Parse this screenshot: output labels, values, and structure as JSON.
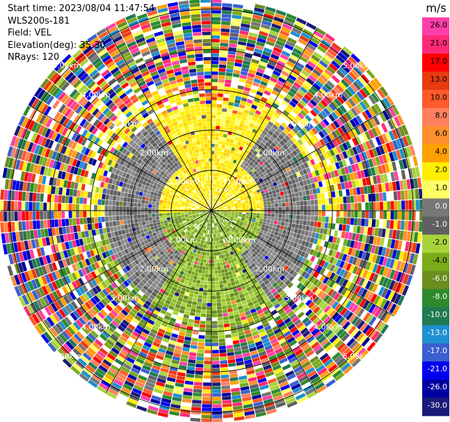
{
  "header": {
    "start_time": "Start time: 2023/08/04 11:47:54",
    "instrument": "WLS200s-181",
    "field": "Field: VEL",
    "elevation": "Elevation(deg): 35.30",
    "nrays": "NRays: 120"
  },
  "chart_data": {
    "type": "heatmap",
    "subtype": "polar-ppi",
    "field": "VEL",
    "units": "m/s",
    "n_rays": 120,
    "elevation_deg": 35.3,
    "range_rings_km": [
      1,
      2,
      3,
      4,
      5
    ],
    "range_ring_labels": [
      "1.00km",
      "2.00km",
      "3.00km",
      "4.00km",
      "5.00km"
    ],
    "colorbar": {
      "unit_label": "m/s",
      "tick_labels": [
        "26.0",
        "21.0",
        "17.0",
        "13.0",
        "10.0",
        "8.0",
        "6.0",
        "4.0",
        "2.0",
        "1.0",
        "0.0",
        "-1.0",
        "-2.0",
        "-4.0",
        "-6.0",
        "-8.0",
        "-10.0",
        "-13.0",
        "-17.0",
        "-21.0",
        "-26.0",
        "-30.0"
      ],
      "colors": [
        "#ff3fa8",
        "#ff2a77",
        "#ff0000",
        "#e83b10",
        "#ff5a2a",
        "#ff8060",
        "#ff8f2e",
        "#ffa000",
        "#ffee00",
        "#ffff66",
        "#777777",
        "#606060",
        "#a8d43a",
        "#7aab1a",
        "#6a8e1e",
        "#2d8b2d",
        "#207a52",
        "#1e8fd0",
        "#3a5fd0",
        "#0000ee",
        "#0000a0",
        "#1a1a7a"
      ]
    },
    "pattern_description_values": {
      "near_range_positive_sector_m_s": [
        1.0,
        4.0
      ],
      "near_range_negative_sector_m_s": [
        -4.0,
        -1.0
      ],
      "far_range": "noise"
    }
  }
}
